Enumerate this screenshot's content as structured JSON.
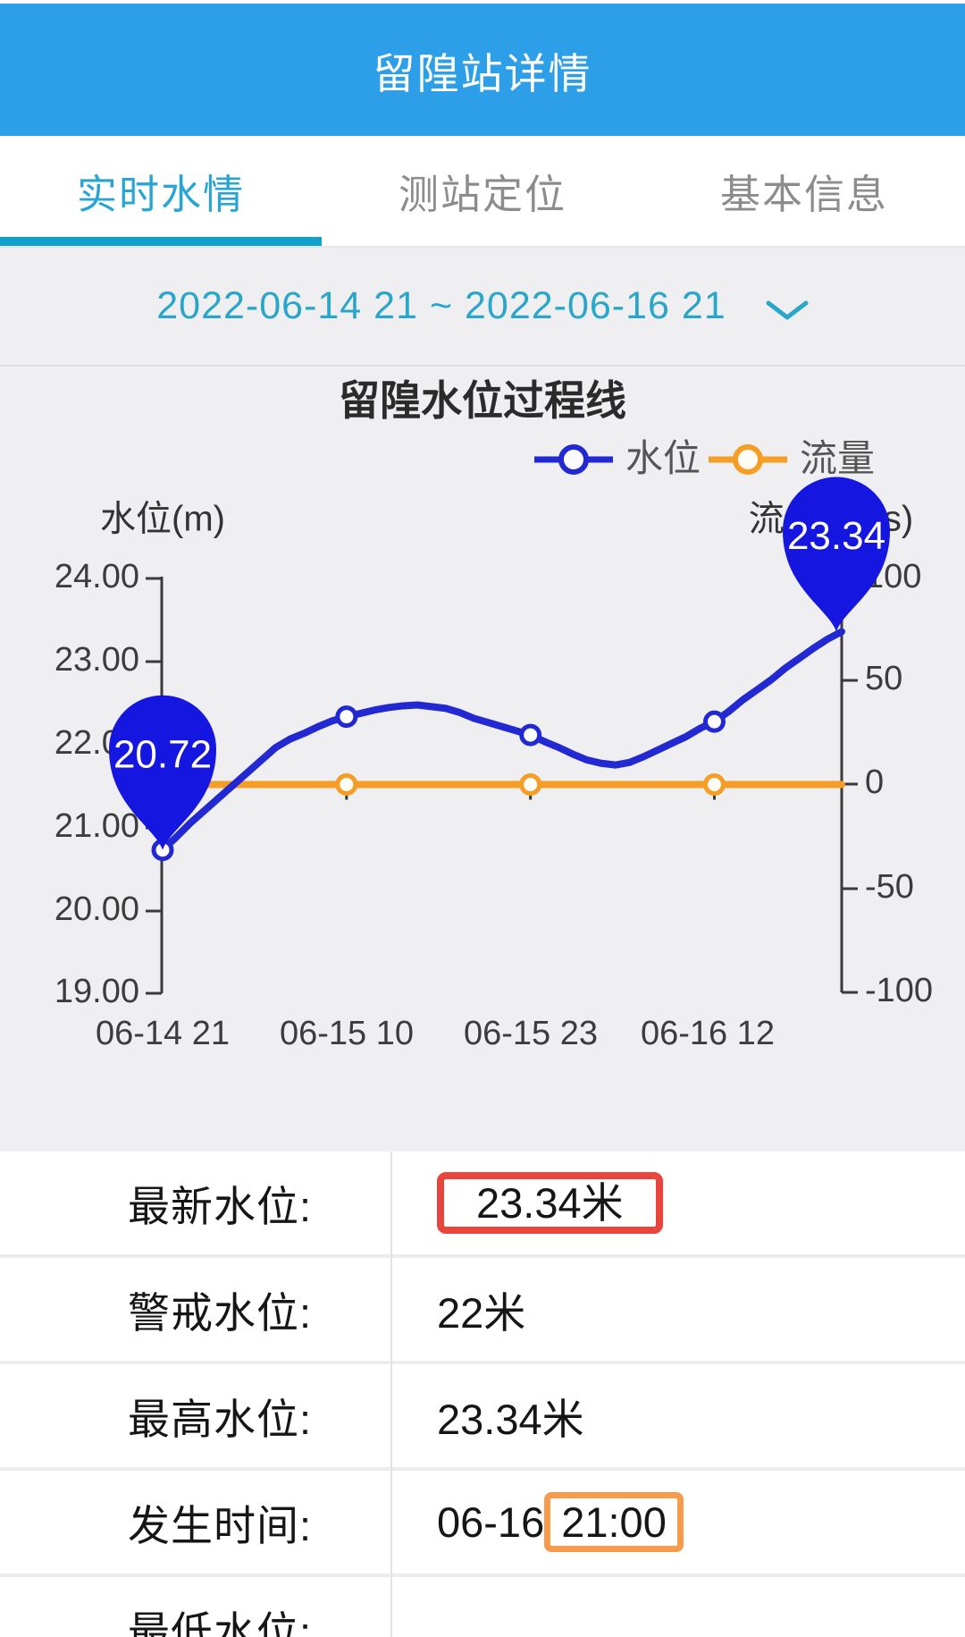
{
  "header": {
    "title": "留隍站详情"
  },
  "tabs": [
    {
      "label": "实时水情",
      "active": true
    },
    {
      "label": "测站定位",
      "active": false
    },
    {
      "label": "基本信息",
      "active": false
    }
  ],
  "date_range": {
    "text": "2022-06-14 21 ~ 2022-06-16 21"
  },
  "chart_data": {
    "type": "line",
    "title": "留隍水位过程线",
    "legend_position": "top-right",
    "grid": false,
    "legend": [
      {
        "name": "水位",
        "color": "#2228d2"
      },
      {
        "name": "流量",
        "color": "#f59d25"
      }
    ],
    "y_left": {
      "title": "水位(m)",
      "ticks": [
        "24.00",
        "23.00",
        "22.00",
        "21.00",
        "20.00",
        "19.00"
      ],
      "min": 19,
      "max": 24
    },
    "y_right": {
      "title": "流量(m³/s)",
      "ticks": [
        "100",
        "50",
        "0",
        "-50",
        "-100"
      ],
      "min": -100,
      "max": 100
    },
    "x_ticks": [
      "06-14 21",
      "06-15 10",
      "06-15 23",
      "06-16 12"
    ],
    "x_hours_range": [
      0,
      48
    ],
    "series": [
      {
        "name": "水位",
        "axis": "left",
        "color": "#2228d2",
        "points": [
          [
            0,
            20.72
          ],
          [
            1,
            20.88
          ],
          [
            2,
            21.05
          ],
          [
            3,
            21.2
          ],
          [
            4,
            21.35
          ],
          [
            5,
            21.5
          ],
          [
            6,
            21.65
          ],
          [
            7,
            21.8
          ],
          [
            8,
            21.95
          ],
          [
            9,
            22.05
          ],
          [
            10,
            22.12
          ],
          [
            11,
            22.2
          ],
          [
            12,
            22.27
          ],
          [
            13,
            22.32
          ],
          [
            14,
            22.36
          ],
          [
            15,
            22.4
          ],
          [
            16,
            22.43
          ],
          [
            17,
            22.45
          ],
          [
            18,
            22.46
          ],
          [
            19,
            22.44
          ],
          [
            20,
            22.42
          ],
          [
            21,
            22.37
          ],
          [
            22,
            22.3
          ],
          [
            23,
            22.25
          ],
          [
            24,
            22.2
          ],
          [
            25,
            22.15
          ],
          [
            26,
            22.1
          ],
          [
            27,
            22.02
          ],
          [
            28,
            21.95
          ],
          [
            29,
            21.87
          ],
          [
            30,
            21.8
          ],
          [
            31,
            21.76
          ],
          [
            32,
            21.74
          ],
          [
            33,
            21.77
          ],
          [
            34,
            21.84
          ],
          [
            35,
            21.92
          ],
          [
            36,
            22.0
          ],
          [
            37,
            22.08
          ],
          [
            38,
            22.18
          ],
          [
            39,
            22.26
          ],
          [
            40,
            22.38
          ],
          [
            41,
            22.52
          ],
          [
            42,
            22.64
          ],
          [
            43,
            22.76
          ],
          [
            44,
            22.9
          ],
          [
            45,
            23.02
          ],
          [
            46,
            23.14
          ],
          [
            47,
            23.25
          ],
          [
            48,
            23.34
          ]
        ],
        "markers_t": [
          0,
          13,
          26,
          39
        ]
      },
      {
        "name": "流量",
        "axis": "right",
        "color": "#f59d25",
        "points": [
          [
            0,
            0
          ],
          [
            48,
            0
          ]
        ],
        "markers_t": [
          13,
          26,
          39
        ]
      }
    ],
    "balloons": [
      {
        "t": 0,
        "label": "20.72"
      },
      {
        "t": 48,
        "label": "23.34"
      }
    ]
  },
  "table": {
    "rows": [
      {
        "label": "最新水位:",
        "value_prefix": "",
        "value": "23.34米"
      },
      {
        "label": "警戒水位:",
        "value_prefix": "",
        "value": "22米"
      },
      {
        "label": "最高水位:",
        "value_prefix": "",
        "value": "23.34米"
      },
      {
        "label": "发生时间:",
        "value_prefix": "06-16 ",
        "value": "21:00"
      },
      {
        "label": "最低水位:",
        "value_prefix": "",
        "value": ""
      }
    ]
  },
  "colors": {
    "header_blue": "#2d9fe8",
    "accent_cyan": "#27a5d4",
    "tab_underline": "#0ea2cc",
    "section_bg": "#efeff1",
    "water_line_blue": "#2228d2",
    "flow_line_orange": "#f59d25",
    "balloon_blue": "#1517e0",
    "highlight_red": "#e8463c",
    "highlight_orange": "#f59b4b"
  }
}
